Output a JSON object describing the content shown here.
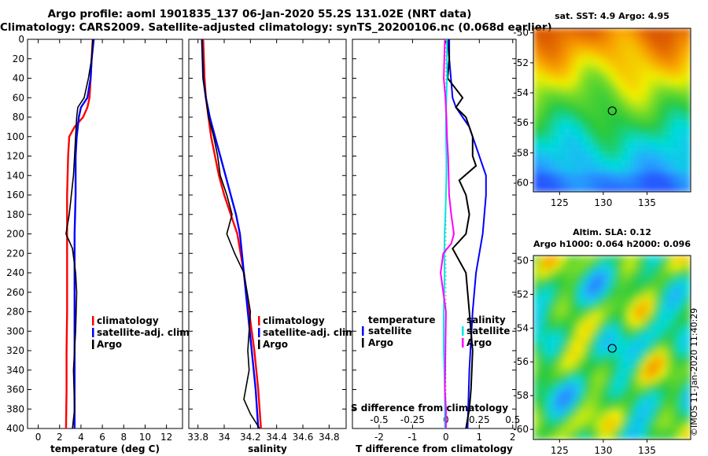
{
  "title_line1": "Argo profile: aoml 1901835_137 06-Jan-2020 55.2S 131.02E (NRT data)",
  "title_line2": "Climatology: CARS2009. Satellite-adjusted climatology: synTS_20200106.nc (0.068d earlier)",
  "credit": "©IMOS 11-Jan-2020 11:40:29",
  "colors": {
    "climatology": "#ff0000",
    "satellite": "#0000ff",
    "argo": "#000000",
    "salinity_diff": "#ff00ff",
    "temperature_diff": "#00e5e5"
  },
  "chart_data": [
    {
      "type": "line",
      "name": "temperature",
      "xlabel": "temperature (deg C)",
      "ylabel": "",
      "xlim": [
        -1,
        13.5
      ],
      "ylim": [
        400,
        0
      ],
      "xticks": [
        "0",
        "2",
        "4",
        "6",
        "8",
        "10",
        "12"
      ],
      "yticks": [
        "0",
        "20",
        "40",
        "60",
        "80",
        "100",
        "120",
        "140",
        "160",
        "180",
        "200",
        "220",
        "240",
        "260",
        "280",
        "300",
        "320",
        "340",
        "360",
        "380",
        "400"
      ],
      "legend": [
        "climatology",
        "satellite-adj. clim.",
        "Argo"
      ],
      "legend_position": "bottom-right",
      "series": [
        {
          "name": "climatology",
          "x": [
            5.1,
            5.0,
            4.9,
            4.8,
            4.6,
            4.2,
            3.4,
            2.9,
            2.8,
            2.7,
            2.7,
            2.7,
            2.7,
            2.65,
            2.65,
            2.6
          ],
          "y": [
            0,
            20,
            40,
            60,
            70,
            80,
            90,
            100,
            120,
            160,
            200,
            240,
            280,
            320,
            360,
            400
          ]
        },
        {
          "name": "satellite-adj. clim.",
          "x": [
            5.2,
            5.0,
            4.9,
            4.6,
            4.0,
            3.8,
            3.7,
            3.6,
            3.5,
            3.5,
            3.4,
            3.4,
            3.4,
            3.4,
            3.4,
            3.4
          ],
          "y": [
            0,
            20,
            40,
            60,
            70,
            80,
            90,
            100,
            120,
            160,
            200,
            240,
            280,
            320,
            360,
            400
          ]
        },
        {
          "name": "Argo",
          "x": [
            5.1,
            5.0,
            4.7,
            4.3,
            3.7,
            3.6,
            3.5,
            3.4,
            3.3,
            3.1,
            2.9,
            2.6,
            3.2,
            3.5,
            3.6,
            3.5,
            3.3,
            3.4,
            3.2
          ],
          "y": [
            0,
            20,
            40,
            60,
            70,
            80,
            100,
            120,
            140,
            160,
            180,
            200,
            215,
            240,
            260,
            300,
            340,
            380,
            400
          ]
        }
      ]
    },
    {
      "type": "line",
      "name": "salinity",
      "xlabel": "salinity",
      "ylabel": "",
      "xlim": [
        33.73,
        34.93
      ],
      "ylim": [
        400,
        0
      ],
      "xticks": [
        "33.8",
        "34",
        "34.2",
        "34.4",
        "34.6",
        "34.8"
      ],
      "yticks": [],
      "legend": [
        "climatology",
        "satellite-adj. clim.",
        "Argo"
      ],
      "legend_position": "bottom-right",
      "series": [
        {
          "name": "climatology",
          "x": [
            33.84,
            33.85,
            33.86,
            33.88,
            33.9,
            33.93,
            33.96,
            34.0,
            34.05,
            34.1,
            34.15,
            34.19,
            34.23,
            34.26,
            34.28
          ],
          "y": [
            0,
            40,
            60,
            80,
            100,
            120,
            140,
            160,
            180,
            200,
            240,
            280,
            320,
            360,
            400
          ]
        },
        {
          "name": "satellite-adj. clim.",
          "x": [
            33.83,
            33.84,
            33.86,
            33.89,
            33.93,
            33.97,
            34.01,
            34.05,
            34.09,
            34.12,
            34.15,
            34.18,
            34.21,
            34.24,
            34.26
          ],
          "y": [
            0,
            40,
            60,
            80,
            100,
            120,
            140,
            160,
            180,
            200,
            240,
            280,
            320,
            360,
            400
          ]
        },
        {
          "name": "Argo",
          "x": [
            33.83,
            33.84,
            33.86,
            33.88,
            33.92,
            33.95,
            33.97,
            34.02,
            34.06,
            34.02,
            34.08,
            34.15,
            34.2,
            34.18,
            34.19,
            34.15,
            34.2,
            34.27
          ],
          "y": [
            0,
            40,
            60,
            80,
            100,
            120,
            140,
            160,
            180,
            200,
            220,
            240,
            280,
            320,
            340,
            370,
            385,
            400
          ]
        }
      ]
    },
    {
      "type": "line",
      "name": "differences",
      "xlabel": "T difference from climatology",
      "top_axis_label": "S difference from climatology",
      "xlim": [
        -2.8,
        2.1
      ],
      "ylim": [
        400,
        0
      ],
      "xticks": [
        "-2",
        "-1",
        "0",
        "1",
        "2"
      ],
      "top_xticks": [
        "-0.5",
        "-0.25",
        "0",
        "0.25",
        "0.5"
      ],
      "top_xlim": [
        -0.7,
        0.525
      ],
      "legend_left": {
        "heading": "temperature",
        "items": [
          "satellite",
          "Argo"
        ]
      },
      "legend_right": {
        "heading": "salinity",
        "items": [
          "satellite",
          "Argo"
        ]
      },
      "series": [
        {
          "name": "temperature satellite",
          "axis": "T",
          "x": [
            0.1,
            0.1,
            0.15,
            0.2,
            0.3,
            0.5,
            0.7,
            0.8,
            1.0,
            1.2,
            1.2,
            1.1,
            0.9,
            0.8,
            0.7,
            0.65
          ],
          "y": [
            0,
            20,
            40,
            60,
            70,
            80,
            90,
            100,
            120,
            140,
            160,
            200,
            240,
            280,
            340,
            400
          ]
        },
        {
          "name": "temperature Argo",
          "axis": "T",
          "x": [
            0.05,
            0.1,
            0.05,
            0.5,
            0.3,
            0.6,
            0.8,
            0.8,
            0.9,
            0.4,
            0.6,
            0.7,
            0.6,
            0.2,
            0.6,
            0.7,
            0.8,
            0.75,
            0.7,
            0.6
          ],
          "y": [
            0,
            20,
            40,
            60,
            70,
            80,
            100,
            120,
            130,
            145,
            160,
            180,
            200,
            215,
            240,
            280,
            320,
            360,
            380,
            400
          ]
        },
        {
          "name": "salinity satellite",
          "axis": "S",
          "x": [
            0.008,
            0.008,
            0.004,
            0.0,
            0.0,
            0.004,
            0.004,
            0.0,
            -0.004,
            -0.01,
            -0.012,
            -0.01,
            -0.016,
            -0.016,
            -0.008,
            -0.008
          ],
          "y": [
            0,
            40,
            60,
            80,
            100,
            120,
            140,
            160,
            180,
            200,
            220,
            240,
            280,
            320,
            360,
            400
          ]
        },
        {
          "name": "salinity Argo",
          "axis": "S",
          "x": [
            -0.008,
            -0.016,
            -0.004,
            0.004,
            0.008,
            0.016,
            0.02,
            0.024,
            0.04,
            0.06,
            0.04,
            -0.02,
            -0.04,
            0.0,
            -0.004,
            -0.008,
            0.0,
            0.0
          ],
          "y": [
            0,
            40,
            60,
            80,
            100,
            120,
            140,
            160,
            180,
            200,
            210,
            220,
            240,
            280,
            320,
            360,
            380,
            400
          ]
        }
      ]
    },
    {
      "type": "heatmap",
      "name": "sst-map",
      "title": "sat. SST: 4.9 Argo: 4.95",
      "xticks": [
        "125",
        "130",
        "135"
      ],
      "yticks": [
        "-50",
        "-52",
        "-54",
        "-56",
        "-58",
        "-60"
      ],
      "xlim": [
        122,
        140
      ],
      "ylim": [
        -60.6,
        -49.7
      ],
      "marker": {
        "lon": 131.02,
        "lat": -55.2
      }
    },
    {
      "type": "heatmap",
      "name": "sla-map",
      "title": "Altim. SLA: 0.12",
      "subtitle": "Argo h1000: 0.064 h2000: 0.096",
      "xticks": [
        "125",
        "130",
        "135"
      ],
      "yticks": [
        "-50",
        "-52",
        "-54",
        "-56",
        "-58",
        "-60"
      ],
      "xlim": [
        122,
        140
      ],
      "ylim": [
        -60.6,
        -49.7
      ],
      "marker": {
        "lon": 131.02,
        "lat": -55.2
      }
    }
  ]
}
